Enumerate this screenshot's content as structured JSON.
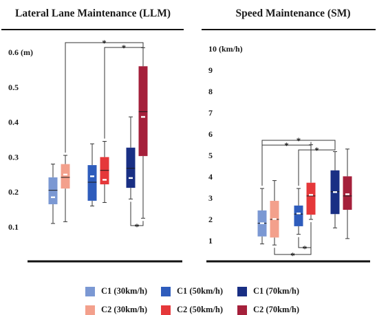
{
  "colors": {
    "c1_30": "#7b98d3",
    "c1_50": "#2e5cbc",
    "c1_70": "#192f84",
    "c2_30": "#f3a08c",
    "c2_50": "#e5383a",
    "c2_70": "#a5203b"
  },
  "legend": {
    "items": [
      {
        "label": "C1 (30km/h)",
        "color_key": "c1_30"
      },
      {
        "label": "C1 (50km/h)",
        "color_key": "c1_50"
      },
      {
        "label": "C1 (70km/h)",
        "color_key": "c1_70"
      },
      {
        "label": "C2 (30km/h)",
        "color_key": "c2_30"
      },
      {
        "label": "C2 (50km/h)",
        "color_key": "c2_50"
      },
      {
        "label": "C2 (70km/h)",
        "color_key": "c2_70"
      }
    ]
  },
  "chart_data": [
    {
      "type": "box",
      "title": "Lateral Lane Maintenance (LLM)",
      "unit_label": "(m)",
      "ylim": [
        0.05,
        0.65
      ],
      "yticks": [
        0.1,
        0.2,
        0.3,
        0.4,
        0.5,
        0.6
      ],
      "ytick_labels": [
        "0.1",
        "0.2",
        "0.3",
        "0.4",
        "0.5",
        "0.6 (m)"
      ],
      "grid": false,
      "boxes": [
        {
          "group": "30km/h",
          "series": "C1",
          "color_key": "c1_30",
          "whisker_low": 0.11,
          "q1": 0.165,
          "median": 0.205,
          "mean": 0.185,
          "q3": 0.242,
          "whisker_high": 0.28
        },
        {
          "group": "30km/h",
          "series": "C2",
          "color_key": "c2_30",
          "whisker_low": 0.115,
          "q1": 0.21,
          "median": 0.242,
          "mean": 0.25,
          "q3": 0.28,
          "whisker_high": 0.305
        },
        {
          "group": "50km/h",
          "series": "C1",
          "color_key": "c1_50",
          "whisker_low": 0.16,
          "q1": 0.175,
          "median": 0.228,
          "mean": 0.245,
          "q3": 0.277,
          "whisker_high": 0.338
        },
        {
          "group": "50km/h",
          "series": "C2",
          "color_key": "c2_50",
          "whisker_low": 0.17,
          "q1": 0.222,
          "median": 0.262,
          "mean": 0.235,
          "q3": 0.3,
          "whisker_high": 0.345
        },
        {
          "group": "70km/h",
          "series": "C1",
          "color_key": "c1_70",
          "whisker_low": 0.18,
          "q1": 0.212,
          "median": 0.268,
          "mean": 0.24,
          "q3": 0.327,
          "whisker_high": 0.415
        },
        {
          "group": "70km/h",
          "series": "C2",
          "color_key": "c2_70",
          "whisker_low": 0.125,
          "q1": 0.303,
          "median": 0.43,
          "mean": 0.415,
          "q3": 0.56,
          "whisker_high": 0.613
        }
      ],
      "significance": [
        {
          "from_box": 1,
          "to_box": 5,
          "side": "top",
          "label": "*"
        },
        {
          "from_box": 3,
          "to_box": 5,
          "side": "top",
          "label": "*"
        },
        {
          "from_box": 4,
          "to_box": 5,
          "side": "bottom",
          "label": "*"
        }
      ]
    },
    {
      "type": "box",
      "title": "Speed Maintenance (SM)",
      "unit_label": "(km/h)",
      "ylim": [
        0.5,
        10.5
      ],
      "yticks": [
        1,
        2,
        3,
        4,
        5,
        6,
        7,
        8,
        9,
        10
      ],
      "ytick_labels": [
        "1",
        "2",
        "3",
        "4",
        "5",
        "6",
        "7",
        "8",
        "9",
        "10 (km/h)"
      ],
      "grid": false,
      "boxes": [
        {
          "group": "30km/h",
          "series": "C1",
          "color_key": "c1_30",
          "whisker_low": 0.85,
          "q1": 1.2,
          "median": 1.82,
          "mean": 1.82,
          "q3": 2.42,
          "whisker_high": 3.45
        },
        {
          "group": "30km/h",
          "series": "C2",
          "color_key": "c2_30",
          "whisker_low": 0.8,
          "q1": 1.15,
          "median": 2.0,
          "mean": 2.02,
          "q3": 2.87,
          "whisker_high": 3.82
        },
        {
          "group": "50km/h",
          "series": "C1",
          "color_key": "c1_50",
          "whisker_low": 1.3,
          "q1": 1.68,
          "median": 2.25,
          "mean": 2.28,
          "q3": 2.65,
          "whisker_high": 3.45
        },
        {
          "group": "50km/h",
          "series": "C2",
          "color_key": "c2_50",
          "whisker_low": 2.0,
          "q1": 2.22,
          "median": 3.1,
          "mean": 3.15,
          "q3": 3.72,
          "whisker_high": 5.5
        },
        {
          "group": "70km/h",
          "series": "C1",
          "color_key": "c1_70",
          "whisker_low": 1.6,
          "q1": 2.25,
          "median": 3.3,
          "mean": 3.28,
          "q3": 4.3,
          "whisker_high": 5.18
        },
        {
          "group": "70km/h",
          "series": "C2",
          "color_key": "c2_70",
          "whisker_low": 1.1,
          "q1": 2.45,
          "median": 3.1,
          "mean": 3.18,
          "q3": 4.02,
          "whisker_high": 5.3
        }
      ],
      "significance": [
        {
          "from_box": 0,
          "to_box": 4,
          "side": "top",
          "label": "*"
        },
        {
          "from_box": 0,
          "to_box": 3,
          "side": "top",
          "label": "*"
        },
        {
          "from_box": 2,
          "to_box": 4,
          "side": "top",
          "label": "*"
        },
        {
          "from_box": 2,
          "to_box": 3,
          "side": "bottom",
          "label": "*"
        },
        {
          "from_box": 1,
          "to_box": 3,
          "side": "bottom",
          "label": "*"
        }
      ]
    }
  ]
}
